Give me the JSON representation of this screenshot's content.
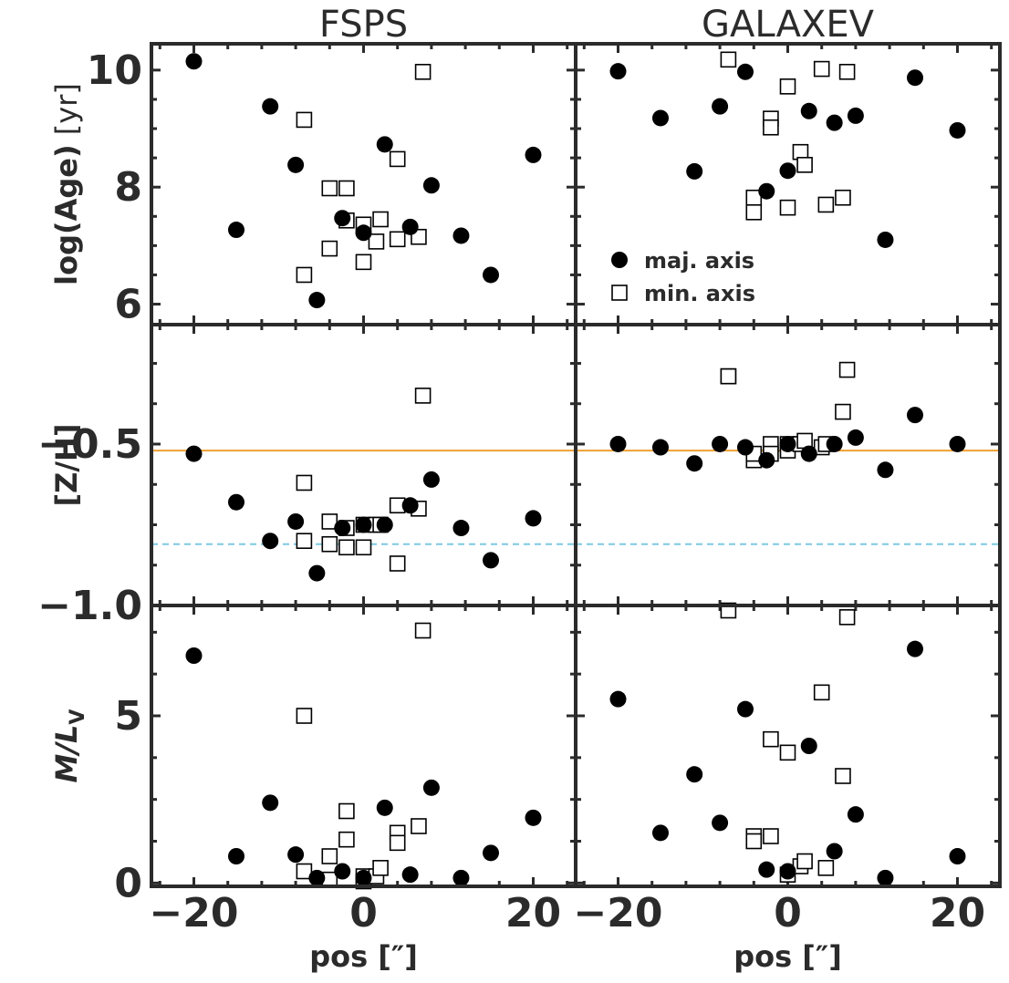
{
  "colors": {
    "frame": "#2b2b2b",
    "marker": "#000000",
    "solar_line": "#f0a030",
    "dashed_line": "#7ec8e3"
  },
  "chart_data": {
    "type": "scatter",
    "columns": [
      "FSPS",
      "GALAXEV"
    ],
    "xlabel": "pos [″]",
    "xlim": [
      -25,
      25
    ],
    "xticks": [
      -20,
      0,
      20
    ],
    "xtick_labels": [
      "−20",
      "0",
      "20"
    ],
    "legend": {
      "position": "lower-left",
      "entries": [
        "maj. axis",
        "min. axis"
      ]
    },
    "rows": [
      {
        "key": "age",
        "ylabel_main": "log(Age)",
        "ylabel_unit": " [yr]",
        "ylim": [
          5.65,
          10.45
        ],
        "yticks": [
          6,
          8,
          10
        ],
        "ytick_labels": [
          "6",
          "8",
          "10"
        ],
        "hlines": []
      },
      {
        "key": "zh",
        "ylabel_main": "[Z/H]",
        "ylabel_unit": "",
        "ylim": [
          -1.0,
          -0.13
        ],
        "yticks": [
          -1.0,
          -0.5
        ],
        "ytick_labels": [
          "−1.0",
          "−0.5"
        ],
        "hlines": [
          {
            "y": -0.52,
            "style": "solid",
            "color": "#f0a030"
          },
          {
            "y": -0.81,
            "style": "dashed",
            "color": "#7ec8e3"
          }
        ]
      },
      {
        "key": "ml",
        "ylabel_main": "M/L",
        "ylabel_sub": "V",
        "ylim": [
          -0.1,
          8.3
        ],
        "yticks": [
          0,
          5
        ],
        "ytick_labels": [
          "0",
          "5"
        ],
        "hlines": []
      }
    ],
    "panels": [
      {
        "row": "age",
        "column": "FSPS",
        "major_axis": [
          [
            -20,
            10.15
          ],
          [
            -15,
            7.27
          ],
          [
            -11,
            9.38
          ],
          [
            -8,
            8.38
          ],
          [
            -5.5,
            6.07
          ],
          [
            -2.5,
            7.47
          ],
          [
            0,
            7.22
          ],
          [
            2.5,
            8.73
          ],
          [
            5.5,
            7.32
          ],
          [
            8,
            8.03
          ],
          [
            11.5,
            7.17
          ],
          [
            15,
            6.5
          ],
          [
            20,
            8.55
          ]
        ],
        "minor_axis": [
          [
            -7,
            9.15
          ],
          [
            -7,
            6.5
          ],
          [
            -4,
            7.98
          ],
          [
            -4,
            6.95
          ],
          [
            -2,
            7.98
          ],
          [
            -2,
            7.43
          ],
          [
            0,
            7.36
          ],
          [
            0,
            6.72
          ],
          [
            1.5,
            7.07
          ],
          [
            2,
            7.45
          ],
          [
            4,
            8.48
          ],
          [
            4,
            7.11
          ],
          [
            6.5,
            7.15
          ],
          [
            7,
            9.97
          ]
        ]
      },
      {
        "row": "age",
        "column": "GALAXEV",
        "major_axis": [
          [
            -20,
            9.98
          ],
          [
            -15,
            9.18
          ],
          [
            -11,
            8.27
          ],
          [
            -8,
            9.38
          ],
          [
            -5,
            9.97
          ],
          [
            -2.5,
            7.93
          ],
          [
            0,
            8.28
          ],
          [
            2.5,
            9.3
          ],
          [
            5.5,
            9.1
          ],
          [
            8,
            9.22
          ],
          [
            11.5,
            7.1
          ],
          [
            15,
            9.87
          ],
          [
            20,
            8.97
          ]
        ],
        "minor_axis": [
          [
            -7,
            10.18
          ],
          [
            -4,
            7.82
          ],
          [
            -4,
            7.57
          ],
          [
            -2,
            9.17
          ],
          [
            -2,
            9.02
          ],
          [
            0,
            9.72
          ],
          [
            0,
            7.65
          ],
          [
            1.5,
            8.6
          ],
          [
            2,
            8.38
          ],
          [
            4,
            10.02
          ],
          [
            4.5,
            7.7
          ],
          [
            6.5,
            7.82
          ],
          [
            7,
            9.97
          ]
        ]
      },
      {
        "row": "zh",
        "column": "FSPS",
        "major_axis": [
          [
            -20,
            -0.53
          ],
          [
            -15,
            -0.68
          ],
          [
            -11,
            -0.8
          ],
          [
            -8,
            -0.74
          ],
          [
            -5.5,
            -0.9
          ],
          [
            -2.5,
            -0.76
          ],
          [
            0,
            -0.75
          ],
          [
            2.5,
            -0.75
          ],
          [
            5.5,
            -0.69
          ],
          [
            8,
            -0.61
          ],
          [
            11.5,
            -0.76
          ],
          [
            15,
            -0.86
          ],
          [
            20,
            -0.73
          ]
        ],
        "minor_axis": [
          [
            -7,
            -0.62
          ],
          [
            -7,
            -0.8
          ],
          [
            -4,
            -0.74
          ],
          [
            -4,
            -0.81
          ],
          [
            -2,
            -0.76
          ],
          [
            -2,
            -0.82
          ],
          [
            0,
            -0.75
          ],
          [
            0,
            -0.82
          ],
          [
            1.5,
            -0.75
          ],
          [
            2,
            -0.75
          ],
          [
            4,
            -0.69
          ],
          [
            4,
            -0.87
          ],
          [
            6.5,
            -0.7
          ],
          [
            7,
            -0.35
          ]
        ]
      },
      {
        "row": "zh",
        "column": "GALAXEV",
        "major_axis": [
          [
            -20,
            -0.5
          ],
          [
            -15,
            -0.51
          ],
          [
            -11,
            -0.56
          ],
          [
            -8,
            -0.5
          ],
          [
            -5,
            -0.51
          ],
          [
            -2.5,
            -0.55
          ],
          [
            0,
            -0.5
          ],
          [
            2.5,
            -0.53
          ],
          [
            5.5,
            -0.5
          ],
          [
            8,
            -0.48
          ],
          [
            11.5,
            -0.58
          ],
          [
            15,
            -0.41
          ],
          [
            20,
            -0.5
          ]
        ],
        "minor_axis": [
          [
            -7,
            -0.29
          ],
          [
            -7,
            -0.29
          ],
          [
            -4,
            -0.55
          ],
          [
            -4,
            -0.53
          ],
          [
            -2,
            -0.5
          ],
          [
            -2,
            -0.53
          ],
          [
            0,
            -0.5
          ],
          [
            0,
            -0.52
          ],
          [
            1.5,
            -0.5
          ],
          [
            2,
            -0.49
          ],
          [
            4,
            -0.51
          ],
          [
            4.5,
            -0.5
          ],
          [
            6.5,
            -0.4
          ],
          [
            7,
            -0.27
          ]
        ]
      },
      {
        "row": "ml",
        "column": "FSPS",
        "major_axis": [
          [
            -20,
            6.8
          ],
          [
            -15,
            0.8
          ],
          [
            -11,
            2.4
          ],
          [
            -8,
            0.85
          ],
          [
            -5.5,
            0.15
          ],
          [
            -2.5,
            0.35
          ],
          [
            0,
            0.15
          ],
          [
            2.5,
            2.25
          ],
          [
            5.5,
            0.25
          ],
          [
            8,
            2.85
          ],
          [
            11.5,
            0.15
          ],
          [
            15,
            0.9
          ],
          [
            20,
            1.95
          ]
        ],
        "minor_axis": [
          [
            -7,
            5.0
          ],
          [
            -7,
            0.35
          ],
          [
            -4,
            0.8
          ],
          [
            -4,
            0.1
          ],
          [
            -2,
            2.15
          ],
          [
            -2,
            1.3
          ],
          [
            0,
            0.2
          ],
          [
            0,
            0.05
          ],
          [
            1.5,
            0.2
          ],
          [
            2,
            0.45
          ],
          [
            4,
            1.5
          ],
          [
            4,
            1.2
          ],
          [
            6.5,
            1.7
          ],
          [
            7,
            7.55
          ]
        ]
      },
      {
        "row": "ml",
        "column": "GALAXEV",
        "major_axis": [
          [
            -20,
            5.5
          ],
          [
            -15,
            1.5
          ],
          [
            -11,
            3.25
          ],
          [
            -8,
            1.8
          ],
          [
            -5,
            5.2
          ],
          [
            -2.5,
            0.4
          ],
          [
            0,
            0.35
          ],
          [
            2.5,
            4.1
          ],
          [
            5.5,
            0.95
          ],
          [
            8,
            2.05
          ],
          [
            11.5,
            0.15
          ],
          [
            15,
            7.0
          ],
          [
            20,
            0.8
          ]
        ],
        "minor_axis": [
          [
            -7,
            8.15
          ],
          [
            -4,
            1.4
          ],
          [
            -4,
            1.25
          ],
          [
            -2,
            4.3
          ],
          [
            -2,
            1.4
          ],
          [
            0,
            3.9
          ],
          [
            0,
            0.25
          ],
          [
            1.5,
            0.5
          ],
          [
            2,
            0.65
          ],
          [
            4,
            5.7
          ],
          [
            4.5,
            0.45
          ],
          [
            6.5,
            3.2
          ],
          [
            7,
            7.95
          ]
        ]
      }
    ]
  }
}
